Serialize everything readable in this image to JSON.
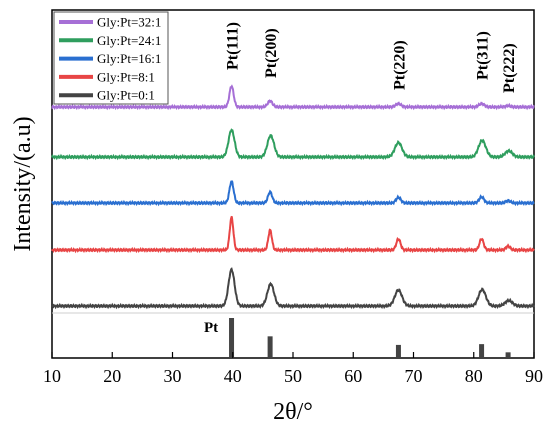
{
  "chart_data": {
    "type": "line",
    "title": "",
    "xlabel": "2θ/°",
    "ylabel": "Intensity/(a.u)",
    "xlim": [
      10,
      90
    ],
    "x_ticks": [
      10,
      20,
      30,
      40,
      50,
      60,
      70,
      80,
      90
    ],
    "y_ticks_shown": false,
    "grid": false,
    "legend_position": "top-left",
    "series": [
      {
        "name": "Gly:Pt=32:1",
        "color": "#a66fd6",
        "offset": 4,
        "baseline": 0.4,
        "peaks": [
          {
            "x": 39.8,
            "height": 1.9,
            "width": 0.35
          },
          {
            "x": 46.2,
            "height": 0.55,
            "width": 0.4
          },
          {
            "x": 67.5,
            "height": 0.3,
            "width": 0.45
          },
          {
            "x": 81.3,
            "height": 0.3,
            "width": 0.45
          },
          {
            "x": 85.7,
            "height": 0.12,
            "width": 0.4
          }
        ]
      },
      {
        "name": "Gly:Pt=24:1",
        "color": "#2f9e5e",
        "offset": 3,
        "baseline": 0.4,
        "peaks": [
          {
            "x": 39.8,
            "height": 2.45,
            "width": 0.5
          },
          {
            "x": 46.3,
            "height": 1.95,
            "width": 0.55
          },
          {
            "x": 67.5,
            "height": 1.3,
            "width": 0.6
          },
          {
            "x": 81.4,
            "height": 1.5,
            "width": 0.6
          },
          {
            "x": 85.8,
            "height": 0.55,
            "width": 0.6
          }
        ]
      },
      {
        "name": "Gly:Pt=16:1",
        "color": "#2a6fd0",
        "offset": 2,
        "baseline": 0.4,
        "peaks": [
          {
            "x": 39.8,
            "height": 1.95,
            "width": 0.35
          },
          {
            "x": 46.2,
            "height": 1.0,
            "width": 0.35
          },
          {
            "x": 67.5,
            "height": 0.5,
            "width": 0.4
          },
          {
            "x": 81.3,
            "height": 0.55,
            "width": 0.4
          },
          {
            "x": 85.7,
            "height": 0.2,
            "width": 0.4
          }
        ]
      },
      {
        "name": "Gly:Pt=8:1",
        "color": "#e84545",
        "offset": 1,
        "baseline": 0.4,
        "peaks": [
          {
            "x": 39.8,
            "height": 2.95,
            "width": 0.3
          },
          {
            "x": 46.2,
            "height": 1.8,
            "width": 0.3
          },
          {
            "x": 67.5,
            "height": 1.0,
            "width": 0.35
          },
          {
            "x": 81.3,
            "height": 1.0,
            "width": 0.35
          },
          {
            "x": 85.7,
            "height": 0.35,
            "width": 0.35
          }
        ]
      },
      {
        "name": "Gly:Pt=0:1",
        "color": "#444444",
        "offset": 0,
        "baseline": 0.4,
        "peaks": [
          {
            "x": 39.8,
            "height": 3.3,
            "width": 0.5
          },
          {
            "x": 46.3,
            "height": 2.0,
            "width": 0.55
          },
          {
            "x": 67.5,
            "height": 1.45,
            "width": 0.6
          },
          {
            "x": 81.4,
            "height": 1.5,
            "width": 0.6
          },
          {
            "x": 85.8,
            "height": 0.5,
            "width": 0.6
          }
        ]
      }
    ],
    "peak_labels": [
      {
        "text": "Pt(111)",
        "x": 39.8
      },
      {
        "text": "Pt(200)",
        "x": 46.2
      },
      {
        "text": "Pt(220)",
        "x": 67.5
      },
      {
        "text": "Pt(311)",
        "x": 81.3
      },
      {
        "text": "Pt(222)",
        "x": 85.7
      }
    ],
    "reference": {
      "label": "Pt",
      "color": "#444444",
      "lines": [
        {
          "x": 39.8,
          "intensity": 100
        },
        {
          "x": 46.2,
          "intensity": 53
        },
        {
          "x": 67.5,
          "intensity": 31
        },
        {
          "x": 81.3,
          "intensity": 33
        },
        {
          "x": 85.7,
          "intensity": 12
        }
      ]
    }
  }
}
